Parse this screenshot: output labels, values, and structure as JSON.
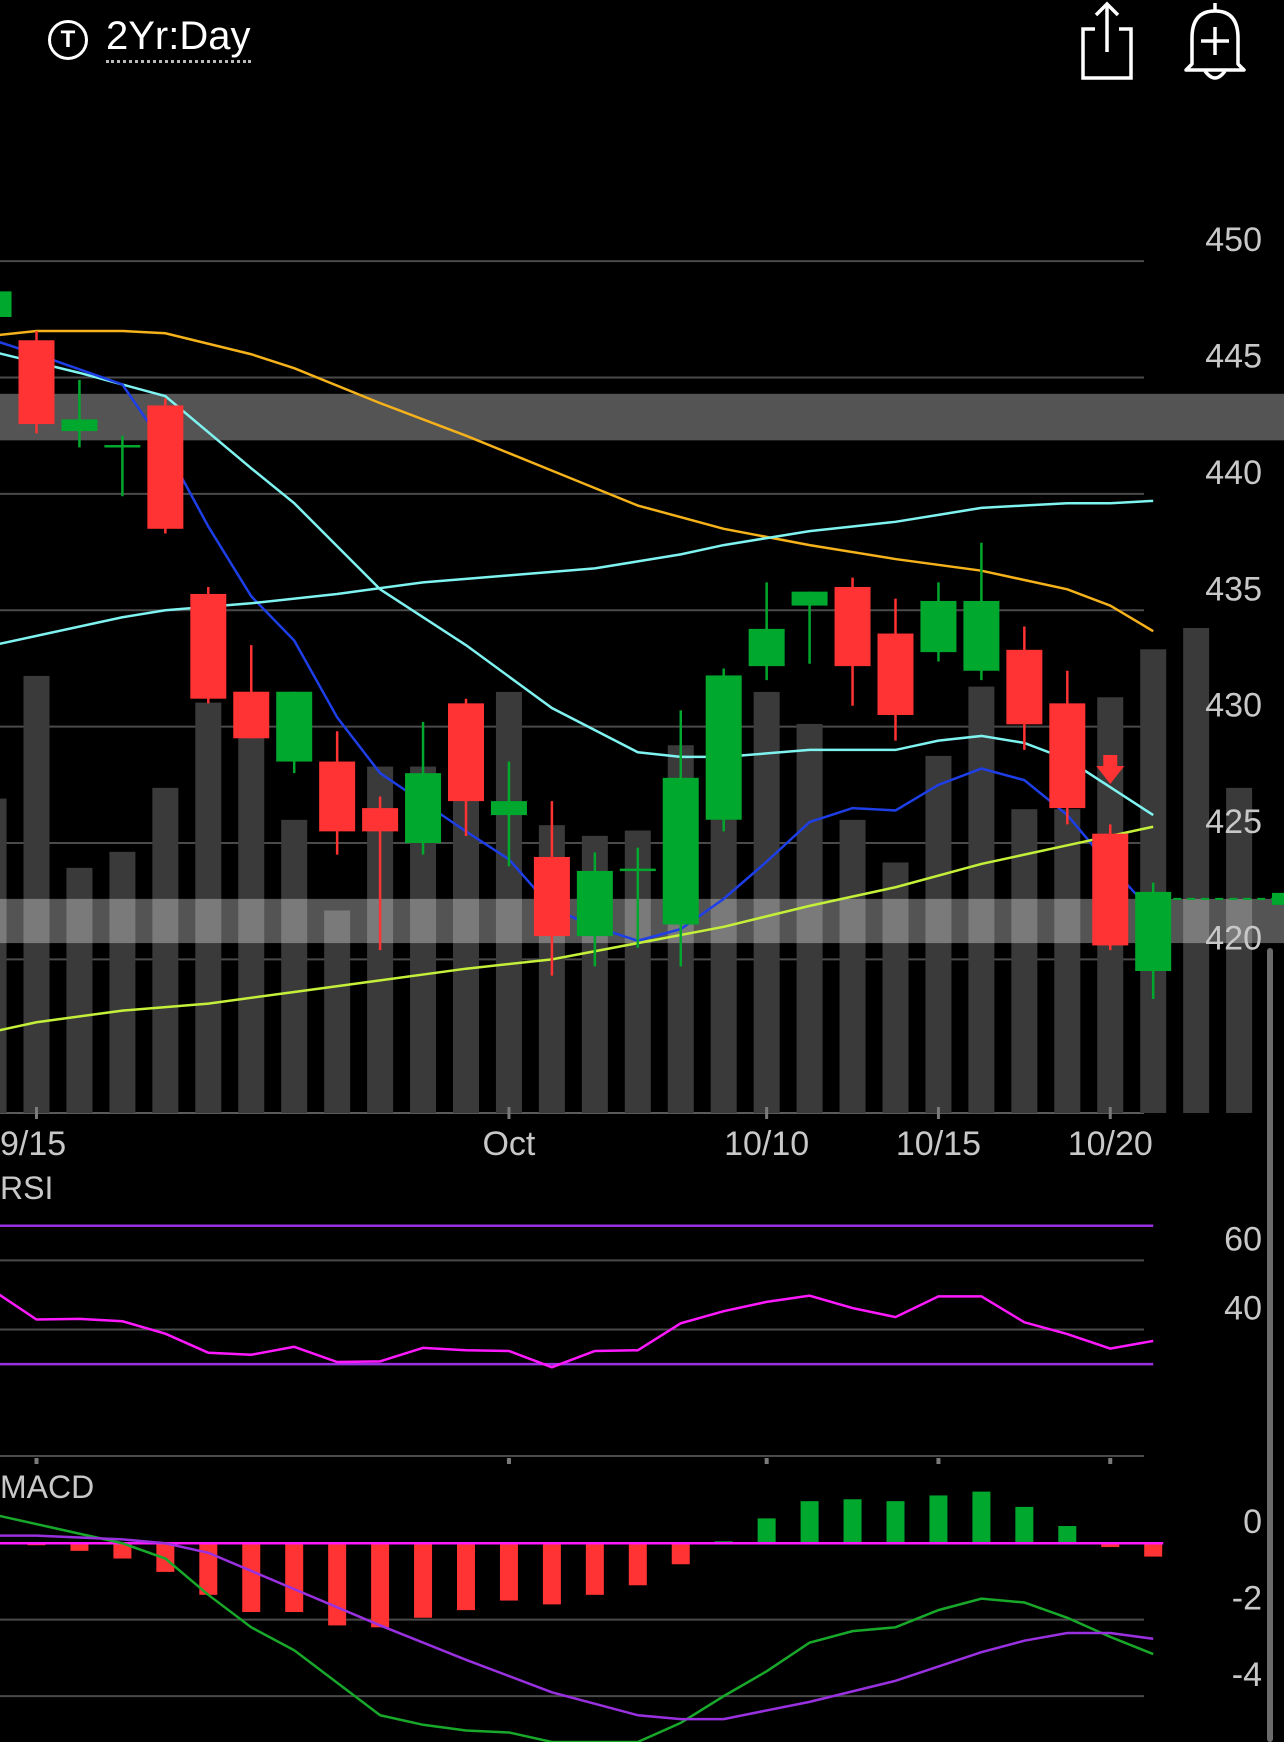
{
  "header": {
    "ticker_icon": "T",
    "range_label": "2Yr:Day",
    "share_icon": "share-icon",
    "alert_icon": "add-alert-bell-icon"
  },
  "colors": {
    "up": "#00a82d",
    "down": "#ff3333",
    "volume": "#3a3a3a",
    "ma_orange": "#f5b21b",
    "ma_cyan": "#7ff3f0",
    "ma_blue": "#1e3fe8",
    "ma_lime": "#c5f03a",
    "rsi": "#ff19ff",
    "rsi_band": "#9a31e0",
    "macd_line": "#18a82a",
    "macd_signal": "#9a31e0",
    "macd_zero": "#ff19ff"
  },
  "chart_data": [
    {
      "type": "candlestick",
      "title": "",
      "xlabel": "",
      "ylabel": "",
      "ylim": [
        413.4,
        453.4
      ],
      "y_ticks": [
        "450",
        "445",
        "440",
        "435",
        "430",
        "425",
        "420"
      ],
      "x_ticks": [
        {
          "label": "9/15",
          "index": 0
        },
        {
          "label": "Oct",
          "index": 11
        },
        {
          "label": "10/10",
          "index": 17
        },
        {
          "label": "10/15",
          "index": 21
        },
        {
          "label": "10/20",
          "index": 25
        }
      ],
      "candles": [
        {
          "i": -1,
          "o": 447.6,
          "h": 449.0,
          "l": 446.5,
          "c": 448.7
        },
        {
          "i": 0,
          "o": 446.6,
          "h": 447.0,
          "l": 442.6,
          "c": 443.0
        },
        {
          "i": 1,
          "o": 442.7,
          "h": 444.9,
          "l": 442.0,
          "c": 443.2
        },
        {
          "i": 2,
          "o": 442.0,
          "h": 442.5,
          "l": 439.9,
          "c": 442.1
        },
        {
          "i": 3,
          "o": 443.8,
          "h": 444.1,
          "l": 438.3,
          "c": 438.5
        },
        {
          "i": 4,
          "o": 435.7,
          "h": 436.0,
          "l": 431.0,
          "c": 431.2
        },
        {
          "i": 5,
          "o": 431.5,
          "h": 433.5,
          "l": 429.5,
          "c": 429.5
        },
        {
          "i": 6,
          "o": 428.5,
          "h": 431.5,
          "l": 428.0,
          "c": 431.5
        },
        {
          "i": 7,
          "o": 428.5,
          "h": 429.8,
          "l": 424.5,
          "c": 425.5
        },
        {
          "i": 8,
          "o": 426.5,
          "h": 427.0,
          "l": 420.4,
          "c": 425.5
        },
        {
          "i": 9,
          "o": 425.0,
          "h": 430.2,
          "l": 424.5,
          "c": 428.0
        },
        {
          "i": 10,
          "o": 431.0,
          "h": 431.2,
          "l": 425.3,
          "c": 426.8
        },
        {
          "i": 11,
          "o": 426.2,
          "h": 428.5,
          "l": 424.0,
          "c": 426.8
        },
        {
          "i": 12,
          "o": 424.4,
          "h": 426.8,
          "l": 419.3,
          "c": 421.0
        },
        {
          "i": 13,
          "o": 421.0,
          "h": 424.6,
          "l": 419.7,
          "c": 423.8
        },
        {
          "i": 14,
          "o": 423.8,
          "h": 424.8,
          "l": 420.5,
          "c": 423.9
        },
        {
          "i": 15,
          "o": 421.5,
          "h": 430.7,
          "l": 419.7,
          "c": 427.8
        },
        {
          "i": 16,
          "o": 426.0,
          "h": 432.5,
          "l": 425.5,
          "c": 432.2
        },
        {
          "i": 17,
          "o": 432.6,
          "h": 436.2,
          "l": 432.0,
          "c": 434.2
        },
        {
          "i": 18,
          "o": 435.2,
          "h": 435.8,
          "l": 432.7,
          "c": 435.8
        },
        {
          "i": 19,
          "o": 436.0,
          "h": 436.4,
          "l": 430.9,
          "c": 432.6
        },
        {
          "i": 20,
          "o": 434.0,
          "h": 435.5,
          "l": 429.4,
          "c": 430.5
        },
        {
          "i": 21,
          "o": 433.2,
          "h": 436.2,
          "l": 432.8,
          "c": 435.4
        },
        {
          "i": 22,
          "o": 432.4,
          "h": 437.9,
          "l": 432.0,
          "c": 435.4
        },
        {
          "i": 23,
          "o": 433.3,
          "h": 434.3,
          "l": 429.0,
          "c": 430.1
        },
        {
          "i": 24,
          "o": 431.0,
          "h": 432.4,
          "l": 425.8,
          "c": 426.5
        },
        {
          "i": 25,
          "o": 425.4,
          "h": 425.8,
          "l": 420.4,
          "c": 420.6
        },
        {
          "i": 26,
          "o": 419.5,
          "h": 423.3,
          "l": 418.3,
          "c": 422.9
        }
      ],
      "volume_rel": [
        0.59,
        0.82,
        0.46,
        0.49,
        0.61,
        0.77,
        0.76,
        0.55,
        0.38,
        0.65,
        0.65,
        0.64,
        0.79,
        0.54,
        0.52,
        0.53,
        0.69,
        0.61,
        0.79,
        0.73,
        0.55,
        0.47,
        0.67,
        0.8,
        0.57,
        0.57,
        0.78,
        0.87,
        0.91,
        0.61
      ],
      "series": [
        {
          "color": "ma_orange",
          "x": [
            -1,
            0,
            2,
            3,
            5,
            6,
            8,
            10,
            12,
            14,
            16,
            18,
            20,
            22,
            24,
            25,
            26
          ],
          "y": [
            446.8,
            447.0,
            447.0,
            446.9,
            446.0,
            445.4,
            443.9,
            442.5,
            441.0,
            439.5,
            438.5,
            437.8,
            437.2,
            436.7,
            435.9,
            435.2,
            434.1
          ]
        },
        {
          "color": "ma_cyan",
          "x": [
            -1,
            1,
            3,
            5,
            6,
            8,
            10,
            12,
            14,
            15,
            16,
            18,
            20,
            21,
            22,
            23,
            24,
            25,
            26
          ],
          "y": [
            446.1,
            445.2,
            444.2,
            441.1,
            439.6,
            435.9,
            433.5,
            430.8,
            428.9,
            428.7,
            428.7,
            429.0,
            429.0,
            429.4,
            429.6,
            429.3,
            428.6,
            427.4,
            426.2
          ]
        },
        {
          "color": "ma_blue",
          "x": [
            -1,
            0,
            2,
            3,
            4,
            5,
            6,
            7,
            8,
            10,
            11,
            12,
            13,
            14,
            15,
            16,
            17,
            18,
            19,
            20,
            21,
            22,
            23,
            24,
            25,
            26
          ],
          "y": [
            446.6,
            446.0,
            444.7,
            442.0,
            438.6,
            435.6,
            433.7,
            430.4,
            428.0,
            425.5,
            424.3,
            422.2,
            421.4,
            420.8,
            421.3,
            422.6,
            424.2,
            425.9,
            426.5,
            426.4,
            427.5,
            428.2,
            427.7,
            426.2,
            424.0,
            422.0
          ]
        },
        {
          "color": "ma_cyan",
          "x": [
            -1,
            0,
            2,
            3,
            5,
            7,
            9,
            11,
            13,
            14,
            15,
            16,
            17,
            18,
            19,
            20,
            21,
            22,
            23,
            24,
            25,
            26
          ],
          "y": [
            433.5,
            433.9,
            434.7,
            435.0,
            435.3,
            435.7,
            436.2,
            436.5,
            436.8,
            437.1,
            437.4,
            437.8,
            438.1,
            438.4,
            438.6,
            438.8,
            439.1,
            439.4,
            439.5,
            439.6,
            439.6,
            439.7
          ]
        },
        {
          "color": "ma_lime",
          "x": [
            -1,
            0,
            2,
            4,
            6,
            8,
            10,
            12,
            14,
            16,
            18,
            20,
            22,
            24,
            26
          ],
          "y": [
            416.9,
            417.3,
            417.8,
            418.1,
            418.6,
            419.1,
            419.6,
            420.0,
            420.7,
            421.4,
            422.3,
            423.1,
            424.1,
            424.9,
            425.7
          ]
        }
      ],
      "bands": [
        {
          "from": 442.3,
          "to": 444.3
        },
        {
          "from": 420.7,
          "to": 422.6
        }
      ],
      "last_price": 422.6,
      "signal_arrow_index": 25
    },
    {
      "type": "line",
      "title": "RSI",
      "xlabel": "",
      "ylabel": "",
      "ylim": [
        20.2,
        71.1
      ],
      "y_ticks": [
        "60",
        "40"
      ],
      "bands": [
        70,
        30
      ],
      "series": [
        {
          "color": "rsi",
          "x": [
            -1,
            0,
            1,
            2,
            3,
            4,
            5,
            6,
            7,
            8,
            9,
            10,
            11,
            12,
            13,
            14,
            15,
            16,
            17,
            18,
            19,
            20,
            21,
            22,
            23,
            24,
            25,
            26
          ],
          "y": [
            51.2,
            42.9,
            43.1,
            42.4,
            38.8,
            33.3,
            32.7,
            35.0,
            30.6,
            30.8,
            34.7,
            34.0,
            33.8,
            29.1,
            33.8,
            34.0,
            41.8,
            45.3,
            48.0,
            49.8,
            46.2,
            43.6,
            49.6,
            49.6,
            42.1,
            38.7,
            34.5,
            36.7
          ]
        }
      ]
    },
    {
      "type": "bar",
      "title": "MACD",
      "xlabel": "",
      "ylabel": "",
      "ylim": [
        -5.2,
        1.0
      ],
      "y_ticks": [
        "0",
        "-2",
        "-4"
      ],
      "histogram": [
        {
          "i": 0,
          "v": -0.05
        },
        {
          "i": 1,
          "v": -0.2
        },
        {
          "i": 2,
          "v": -0.4
        },
        {
          "i": 3,
          "v": -0.75
        },
        {
          "i": 4,
          "v": -1.35
        },
        {
          "i": 5,
          "v": -1.8
        },
        {
          "i": 6,
          "v": -1.8
        },
        {
          "i": 7,
          "v": -2.15
        },
        {
          "i": 8,
          "v": -2.2
        },
        {
          "i": 9,
          "v": -1.95
        },
        {
          "i": 10,
          "v": -1.75
        },
        {
          "i": 11,
          "v": -1.5
        },
        {
          "i": 12,
          "v": -1.6
        },
        {
          "i": 13,
          "v": -1.35
        },
        {
          "i": 14,
          "v": -1.1
        },
        {
          "i": 15,
          "v": -0.55
        },
        {
          "i": 16,
          "v": 0.05
        },
        {
          "i": 17,
          "v": 0.65
        },
        {
          "i": 18,
          "v": 1.1
        },
        {
          "i": 19,
          "v": 1.15
        },
        {
          "i": 20,
          "v": 1.1
        },
        {
          "i": 21,
          "v": 1.25
        },
        {
          "i": 22,
          "v": 1.35
        },
        {
          "i": 23,
          "v": 0.95
        },
        {
          "i": 24,
          "v": 0.45
        },
        {
          "i": 25,
          "v": -0.1
        },
        {
          "i": 26,
          "v": -0.35
        }
      ],
      "series": [
        {
          "color": "macd_line",
          "x": [
            -1,
            0,
            2,
            3,
            4,
            5,
            6,
            8,
            9,
            10,
            11,
            12,
            13,
            14,
            15,
            16,
            17,
            18,
            19,
            20,
            21,
            22,
            23,
            24,
            25,
            26
          ],
          "y": [
            0.75,
            0.5,
            0.0,
            -0.4,
            -1.35,
            -2.2,
            -2.8,
            -4.5,
            -4.75,
            -4.9,
            -4.95,
            -5.2,
            -5.2,
            -5.2,
            -4.7,
            -4.0,
            -3.35,
            -2.6,
            -2.3,
            -2.2,
            -1.75,
            -1.45,
            -1.55,
            -1.95,
            -2.45,
            -2.9
          ]
        },
        {
          "color": "macd_signal",
          "x": [
            -1,
            0,
            2,
            3,
            4,
            6,
            8,
            10,
            12,
            14,
            15,
            16,
            18,
            20,
            22,
            23,
            24,
            25,
            26
          ],
          "y": [
            0.2,
            0.2,
            0.1,
            0.0,
            -0.25,
            -1.2,
            -2.15,
            -3.05,
            -3.9,
            -4.5,
            -4.6,
            -4.6,
            -4.15,
            -3.6,
            -2.85,
            -2.55,
            -2.35,
            -2.35,
            -2.5
          ]
        }
      ]
    }
  ]
}
